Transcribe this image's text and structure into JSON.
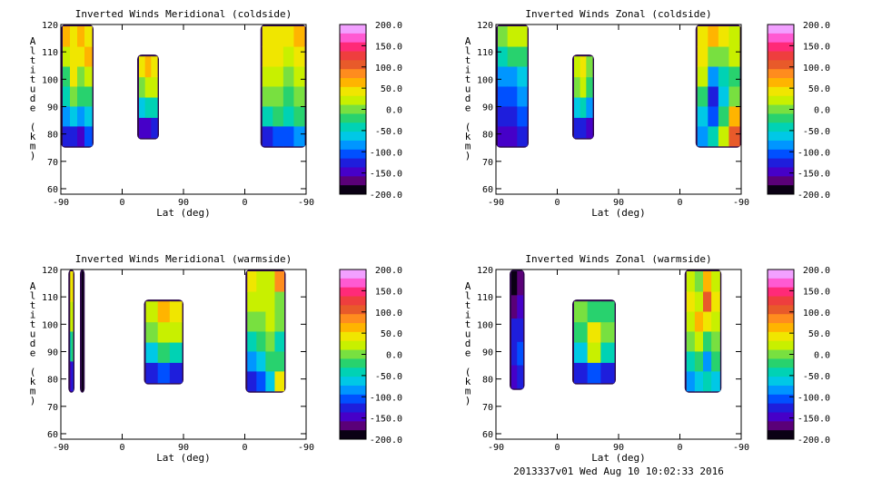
{
  "footer": {
    "timestamp": "2013337v01 Wed Aug 10 10:02:33 2016"
  },
  "colorbar": {
    "labels": [
      "200.0",
      "150.0",
      "100.0",
      "50.0",
      "0.0",
      "-50.0",
      "-100.0",
      "-150.0",
      "-200.0"
    ],
    "colors": [
      "#f2a0ff",
      "#ff5ad2",
      "#ff2a78",
      "#ee3e3e",
      "#e85a2a",
      "#ff8c1e",
      "#ffb400",
      "#f0e600",
      "#c8f000",
      "#78e040",
      "#28d26e",
      "#00d2b4",
      "#00c8e6",
      "#0096ff",
      "#0050ff",
      "#1e1edc",
      "#4600c8",
      "#5a0078",
      "#0a0014"
    ],
    "min": -200,
    "max": 200
  },
  "chart_data": [
    {
      "type": "heatmap",
      "title": "Inverted Winds Meridional (coldside)",
      "xlabel": "Lat (deg)",
      "ylabel": "Altitude (km)",
      "xticks": [
        "-90",
        "0",
        "90",
        "0",
        "-90"
      ],
      "yticks": [
        "60",
        "70",
        "80",
        "90",
        "100",
        "110",
        "120"
      ],
      "ylim": [
        58,
        120
      ],
      "colorbar_range": [
        -200,
        200
      ],
      "regions": [
        {
          "x": [
            -90,
            -42
          ],
          "y": [
            75,
            120
          ],
          "values": [
            [
              -130,
              -80,
              -40,
              -20,
              30,
              60
            ],
            [
              -120,
              -70,
              -10,
              40,
              50,
              45
            ],
            [
              -140,
              -90,
              -30,
              10,
              40,
              55
            ],
            [
              -110,
              -60,
              -20,
              30,
              60,
              50
            ]
          ]
        },
        {
          "x": [
            22,
            54
          ],
          "y": [
            78,
            109
          ],
          "values": [
            [
              -140,
              -60,
              10,
              40
            ],
            [
              -150,
              -50,
              30,
              55
            ],
            [
              -130,
              -40,
              20,
              50
            ]
          ]
        },
        {
          "x": [
            -23,
            -90
          ],
          "y": [
            75,
            120
          ],
          "values": [
            [
              -120,
              -50,
              -10,
              20,
              40,
              50
            ],
            [
              -100,
              -30,
              0,
              15,
              35,
              45
            ],
            [
              -110,
              -40,
              -20,
              10,
              30,
              40
            ],
            [
              -90,
              -30,
              -10,
              20,
              45,
              55
            ]
          ]
        }
      ]
    },
    {
      "type": "heatmap",
      "title": "Inverted Winds Zonal (coldside)",
      "xlabel": "Lat (deg)",
      "ylabel": "Altitude (km)",
      "xticks": [
        "-90",
        "0",
        "90",
        "0",
        "-90"
      ],
      "yticks": [
        "60",
        "70",
        "80",
        "90",
        "100",
        "110",
        "120"
      ],
      "ylim": [
        58,
        120
      ],
      "colorbar_range": [
        -200,
        200
      ],
      "regions": [
        {
          "x": [
            -90,
            -42
          ],
          "y": [
            75,
            120
          ],
          "values": [
            [
              -150,
              -120,
              -100,
              -80,
              -40,
              0
            ],
            [
              -140,
              -130,
              -110,
              -90,
              -20,
              30
            ],
            [
              -120,
              -100,
              -90,
              -70,
              -30,
              20
            ]
          ]
        },
        {
          "x": [
            22,
            54
          ],
          "y": [
            78,
            109
          ],
          "values": [
            [
              -130,
              -60,
              -10,
              20
            ],
            [
              -120,
              -40,
              30,
              50
            ],
            [
              -140,
              -80,
              -20,
              10
            ]
          ]
        },
        {
          "x": [
            -23,
            -90
          ],
          "y": [
            75,
            120
          ],
          "values": [
            [
              -80,
              -60,
              -20,
              20,
              40,
              50
            ],
            [
              -40,
              -100,
              -120,
              -80,
              0,
              60
            ],
            [
              30,
              -20,
              -60,
              -40,
              10,
              40
            ],
            [
              100,
              60,
              0,
              -20,
              20,
              30
            ]
          ]
        }
      ]
    },
    {
      "type": "heatmap",
      "title": "Inverted Winds Meridional (warmside)",
      "xlabel": "Lat (deg)",
      "ylabel": "Altitude (km)",
      "xticks": [
        "-90",
        "0",
        "90",
        "0",
        "-90"
      ],
      "yticks": [
        "60",
        "70",
        "80",
        "90",
        "100",
        "110",
        "120"
      ],
      "ylim": [
        58,
        120
      ],
      "colorbar_range": [
        -200,
        200
      ],
      "regions": [
        {
          "x": [
            -79,
            -70
          ],
          "y": [
            75,
            120
          ],
          "values": [
            [
              -140,
              -40,
              20,
              40
            ],
            [
              -120,
              -20,
              30,
              50
            ]
          ]
        },
        {
          "x": [
            -62,
            -55
          ],
          "y": [
            75,
            120
          ],
          "values": [
            [
              -190,
              -190,
              -190,
              -190
            ]
          ]
        },
        {
          "x": [
            32,
            90
          ],
          "y": [
            78,
            109
          ],
          "values": [
            [
              -130,
              -60,
              -10,
              20
            ],
            [
              -110,
              -30,
              30,
              55
            ],
            [
              -120,
              -40,
              20,
              50
            ]
          ]
        },
        {
          "x": [
            -1,
            -60
          ],
          "y": [
            75,
            120
          ],
          "values": [
            [
              -120,
              -80,
              -40,
              -10,
              20,
              40
            ],
            [
              -100,
              -60,
              -20,
              10,
              30,
              30
            ],
            [
              -60,
              -30,
              0,
              20,
              30,
              20
            ],
            [
              40,
              -20,
              -40,
              -10,
              10,
              80
            ]
          ]
        }
      ]
    },
    {
      "type": "heatmap",
      "title": "Inverted Winds Zonal (warmside)",
      "xlabel": "Lat (deg)",
      "ylabel": "Altitude (km)",
      "xticks": [
        "-90",
        "0",
        "90",
        "0",
        "-90"
      ],
      "yticks": [
        "60",
        "70",
        "80",
        "90",
        "100",
        "110",
        "120"
      ],
      "ylim": [
        58,
        120
      ],
      "colorbar_range": [
        -200,
        200
      ],
      "regions": [
        {
          "x": [
            -70,
            -48
          ],
          "y": [
            76,
            120
          ],
          "values": [
            [
              -150,
              -120,
              -130,
              -160,
              -180
            ],
            [
              -130,
              -110,
              -120,
              -150,
              -170
            ]
          ]
        },
        {
          "x": [
            22,
            86
          ],
          "y": [
            78,
            109
          ],
          "values": [
            [
              -130,
              -60,
              -20,
              -10
            ],
            [
              -100,
              20,
              40,
              -20
            ],
            [
              -120,
              -40,
              10,
              -30
            ]
          ]
        },
        {
          "x": [
            -7,
            -61
          ],
          "y": [
            75,
            120
          ],
          "values": [
            [
              -80,
              -40,
              0,
              30,
              40,
              20
            ],
            [
              -60,
              -20,
              20,
              60,
              30,
              10
            ],
            [
              -40,
              -80,
              -30,
              40,
              110,
              60
            ],
            [
              -60,
              -30,
              0,
              30,
              50,
              30
            ]
          ]
        }
      ]
    }
  ]
}
